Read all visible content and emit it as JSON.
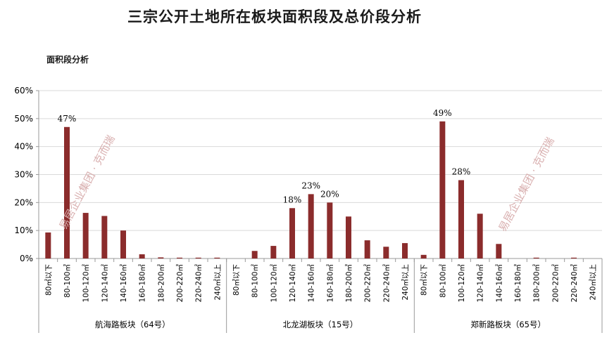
{
  "chart_data": {
    "type": "bar",
    "title": "三宗公开土地所在板块面积段及总价段分析",
    "ylabel": "面积段分析",
    "ylim": [
      0,
      60
    ],
    "yticks": [
      "0%",
      "10%",
      "20%",
      "30%",
      "40%",
      "50%",
      "60%"
    ],
    "categories": [
      "80㎡以下",
      "80-100㎡",
      "100-120㎡",
      "120-140㎡",
      "140-160㎡",
      "160-180㎡",
      "180-200㎡",
      "200-220㎡",
      "220-240㎡",
      "240㎡以上"
    ],
    "groups": [
      {
        "name": "航海路板块（64号）",
        "values": [
          9.3,
          47,
          16.3,
          15.2,
          10,
          1.5,
          0.4,
          0.3,
          0.3,
          0.3
        ],
        "labels": {
          "1": "47%"
        }
      },
      {
        "name": "北龙湖板块（15号）",
        "values": [
          0,
          2.7,
          4.5,
          18,
          23,
          20,
          15,
          6.5,
          4.2,
          5.5
        ],
        "labels": {
          "3": "18%",
          "4": "23%",
          "5": "20%"
        }
      },
      {
        "name": "郑新路板块（65号）",
        "values": [
          1.3,
          49,
          28,
          16,
          5.2,
          0,
          0.3,
          0,
          0.3,
          0
        ],
        "labels": {
          "1": "49%",
          "2": "28%"
        }
      }
    ],
    "bar_color": "#8b2c2c",
    "grid": true,
    "watermark": "易居企业集团 · 克而瑞"
  }
}
